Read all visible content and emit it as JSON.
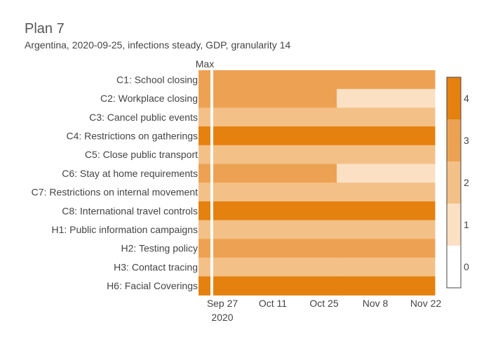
{
  "title": "Plan 7",
  "subtitle": "Argentina, 2020-09-25, infections steady, GDP, granularity 14",
  "chart_data": {
    "type": "heatmap",
    "max_column_label": "Max",
    "x_tick_labels": [
      "Sep 27",
      "Oct 11",
      "Oct 25",
      "Nov 8",
      "Nov 22"
    ],
    "x_tick_sublabels": [
      "2020",
      "",
      "",
      "",
      ""
    ],
    "x_range": [
      "2020-09-27",
      "2020-12-06"
    ],
    "segment_boundaries": [
      "2020-09-27",
      "2020-11-05",
      "2020-12-06"
    ],
    "rows": [
      {
        "label": "C1: School closing",
        "max": 3,
        "values": [
          3,
          3
        ]
      },
      {
        "label": "C2: Workplace closing",
        "max": 3,
        "values": [
          3,
          1
        ]
      },
      {
        "label": "C3: Cancel public events",
        "max": 2,
        "values": [
          2,
          2
        ]
      },
      {
        "label": "C4: Restrictions on gatherings",
        "max": 4,
        "values": [
          4,
          4
        ]
      },
      {
        "label": "C5: Close public transport",
        "max": 2,
        "values": [
          2,
          2
        ]
      },
      {
        "label": "C6: Stay at home requirements",
        "max": 3,
        "values": [
          3,
          1
        ]
      },
      {
        "label": "C7: Restrictions on internal movement",
        "max": 2,
        "values": [
          2,
          2
        ]
      },
      {
        "label": "C8: International travel controls",
        "max": 4,
        "values": [
          4,
          4
        ]
      },
      {
        "label": "H1: Public information campaigns",
        "max": 2,
        "values": [
          2,
          2
        ]
      },
      {
        "label": "H2: Testing policy",
        "max": 3,
        "values": [
          3,
          3
        ]
      },
      {
        "label": "H3: Contact tracing",
        "max": 2,
        "values": [
          2,
          2
        ]
      },
      {
        "label": "H6: Facial Coverings",
        "max": 4,
        "values": [
          4,
          4
        ]
      }
    ],
    "colorscale": {
      "levels": [
        0,
        1,
        2,
        3,
        4
      ],
      "colors": [
        "#ffffff",
        "#fbe0c4",
        "#f3c188",
        "#eda253",
        "#e5810f"
      ]
    },
    "colorbar_ticks": [
      "0",
      "1",
      "2",
      "3",
      "4"
    ]
  }
}
